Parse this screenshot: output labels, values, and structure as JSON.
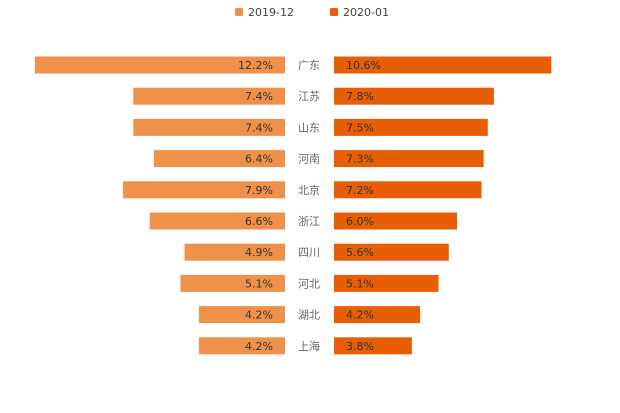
{
  "chart_data": {
    "type": "bar",
    "layout": "butterfly",
    "title": "",
    "xlabel": "",
    "ylabel": "",
    "grid": false,
    "legend_position": "top-center",
    "categories": [
      "广东",
      "江苏",
      "山东",
      "河南",
      "北京",
      "浙江",
      "四川",
      "河北",
      "湖北",
      "上海"
    ],
    "series": [
      {
        "name": "2019-12",
        "color": "#f0914a",
        "side": "left",
        "values": [
          12.2,
          7.4,
          7.4,
          6.4,
          7.9,
          6.6,
          4.9,
          5.1,
          4.2,
          4.2
        ],
        "labels": [
          "12.2%",
          "7.4%",
          "7.4%",
          "6.4%",
          "7.9%",
          "6.6%",
          "4.9%",
          "5.1%",
          "4.2%",
          "4.2%"
        ]
      },
      {
        "name": "2020-01",
        "color": "#e85e04",
        "side": "right",
        "values": [
          10.6,
          7.8,
          7.5,
          7.3,
          7.2,
          6.0,
          5.6,
          5.1,
          4.2,
          3.8
        ],
        "labels": [
          "10.6%",
          "7.8%",
          "7.5%",
          "7.3%",
          "7.2%",
          "6.0%",
          "5.6%",
          "5.1%",
          "4.2%",
          "3.8%"
        ]
      }
    ],
    "unit": "%"
  }
}
